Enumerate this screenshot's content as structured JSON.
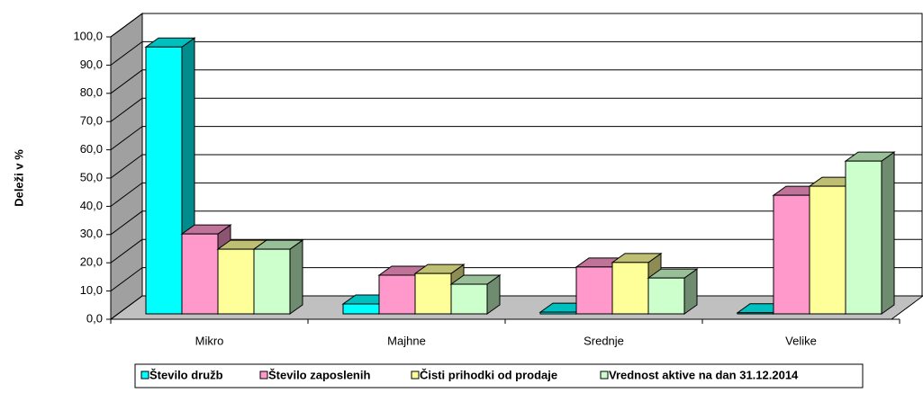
{
  "chart_data": {
    "type": "bar3d",
    "y_label": "Deleži v %",
    "categories": [
      "Mikro",
      "Majhne",
      "Srednje",
      "Velike"
    ],
    "series": [
      {
        "name": "Število družb",
        "color": "#00ffff",
        "values": [
          94.5,
          3.5,
          0.6,
          0.4
        ]
      },
      {
        "name": "Število zaposlenih",
        "color": "#ff99cc",
        "values": [
          28.3,
          13.7,
          16.6,
          42.0
        ]
      },
      {
        "name": "Čisti prihodki od prodaje",
        "color": "#ffff99",
        "values": [
          22.9,
          14.3,
          18.2,
          45.2
        ]
      },
      {
        "name": "Vrednost aktive na dan 31.12.2014",
        "color": "#ccffcc",
        "values": [
          22.9,
          10.5,
          12.7,
          54.1
        ]
      }
    ],
    "ylim": [
      0,
      100
    ],
    "yticks": [
      {
        "value": 0,
        "label": "0,0"
      },
      {
        "value": 10,
        "label": "10,0"
      },
      {
        "value": 20,
        "label": "20,0"
      },
      {
        "value": 30,
        "label": "30,0"
      },
      {
        "value": 40,
        "label": "40,0"
      },
      {
        "value": 50,
        "label": "50,0"
      },
      {
        "value": 60,
        "label": "60,0"
      },
      {
        "value": 70,
        "label": "70,0"
      },
      {
        "value": 80,
        "label": "80,0"
      },
      {
        "value": 90,
        "label": "90,0"
      },
      {
        "value": 100,
        "label": "100,0"
      }
    ],
    "grid": true,
    "legend": "bottom"
  }
}
